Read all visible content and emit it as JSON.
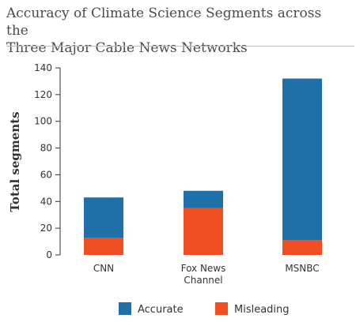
{
  "title_lines": [
    "Accuracy of Climate Science Segments across the",
    "Three Major Cable News Networks"
  ],
  "chart_data": {
    "type": "bar",
    "stacked": true,
    "categories": [
      "CNN",
      "Fox News Channel",
      "MSNBC"
    ],
    "category_label_lines": [
      [
        "CNN"
      ],
      [
        "Fox News",
        "Channel"
      ],
      [
        "MSNBC"
      ]
    ],
    "series": [
      {
        "name": "Misleading",
        "values": [
          13,
          35,
          11
        ],
        "color": "#f04e23"
      },
      {
        "name": "Accurate",
        "values": [
          30,
          13,
          121
        ],
        "color": "#1f6fa8"
      }
    ],
    "ylabel": "Total segments",
    "ylim": [
      0,
      140
    ],
    "yticks": [
      0,
      20,
      40,
      60,
      80,
      100,
      120,
      140
    ],
    "legend_order": [
      "Accurate",
      "Misleading"
    ],
    "legend_position": "bottom",
    "grid": false
  }
}
